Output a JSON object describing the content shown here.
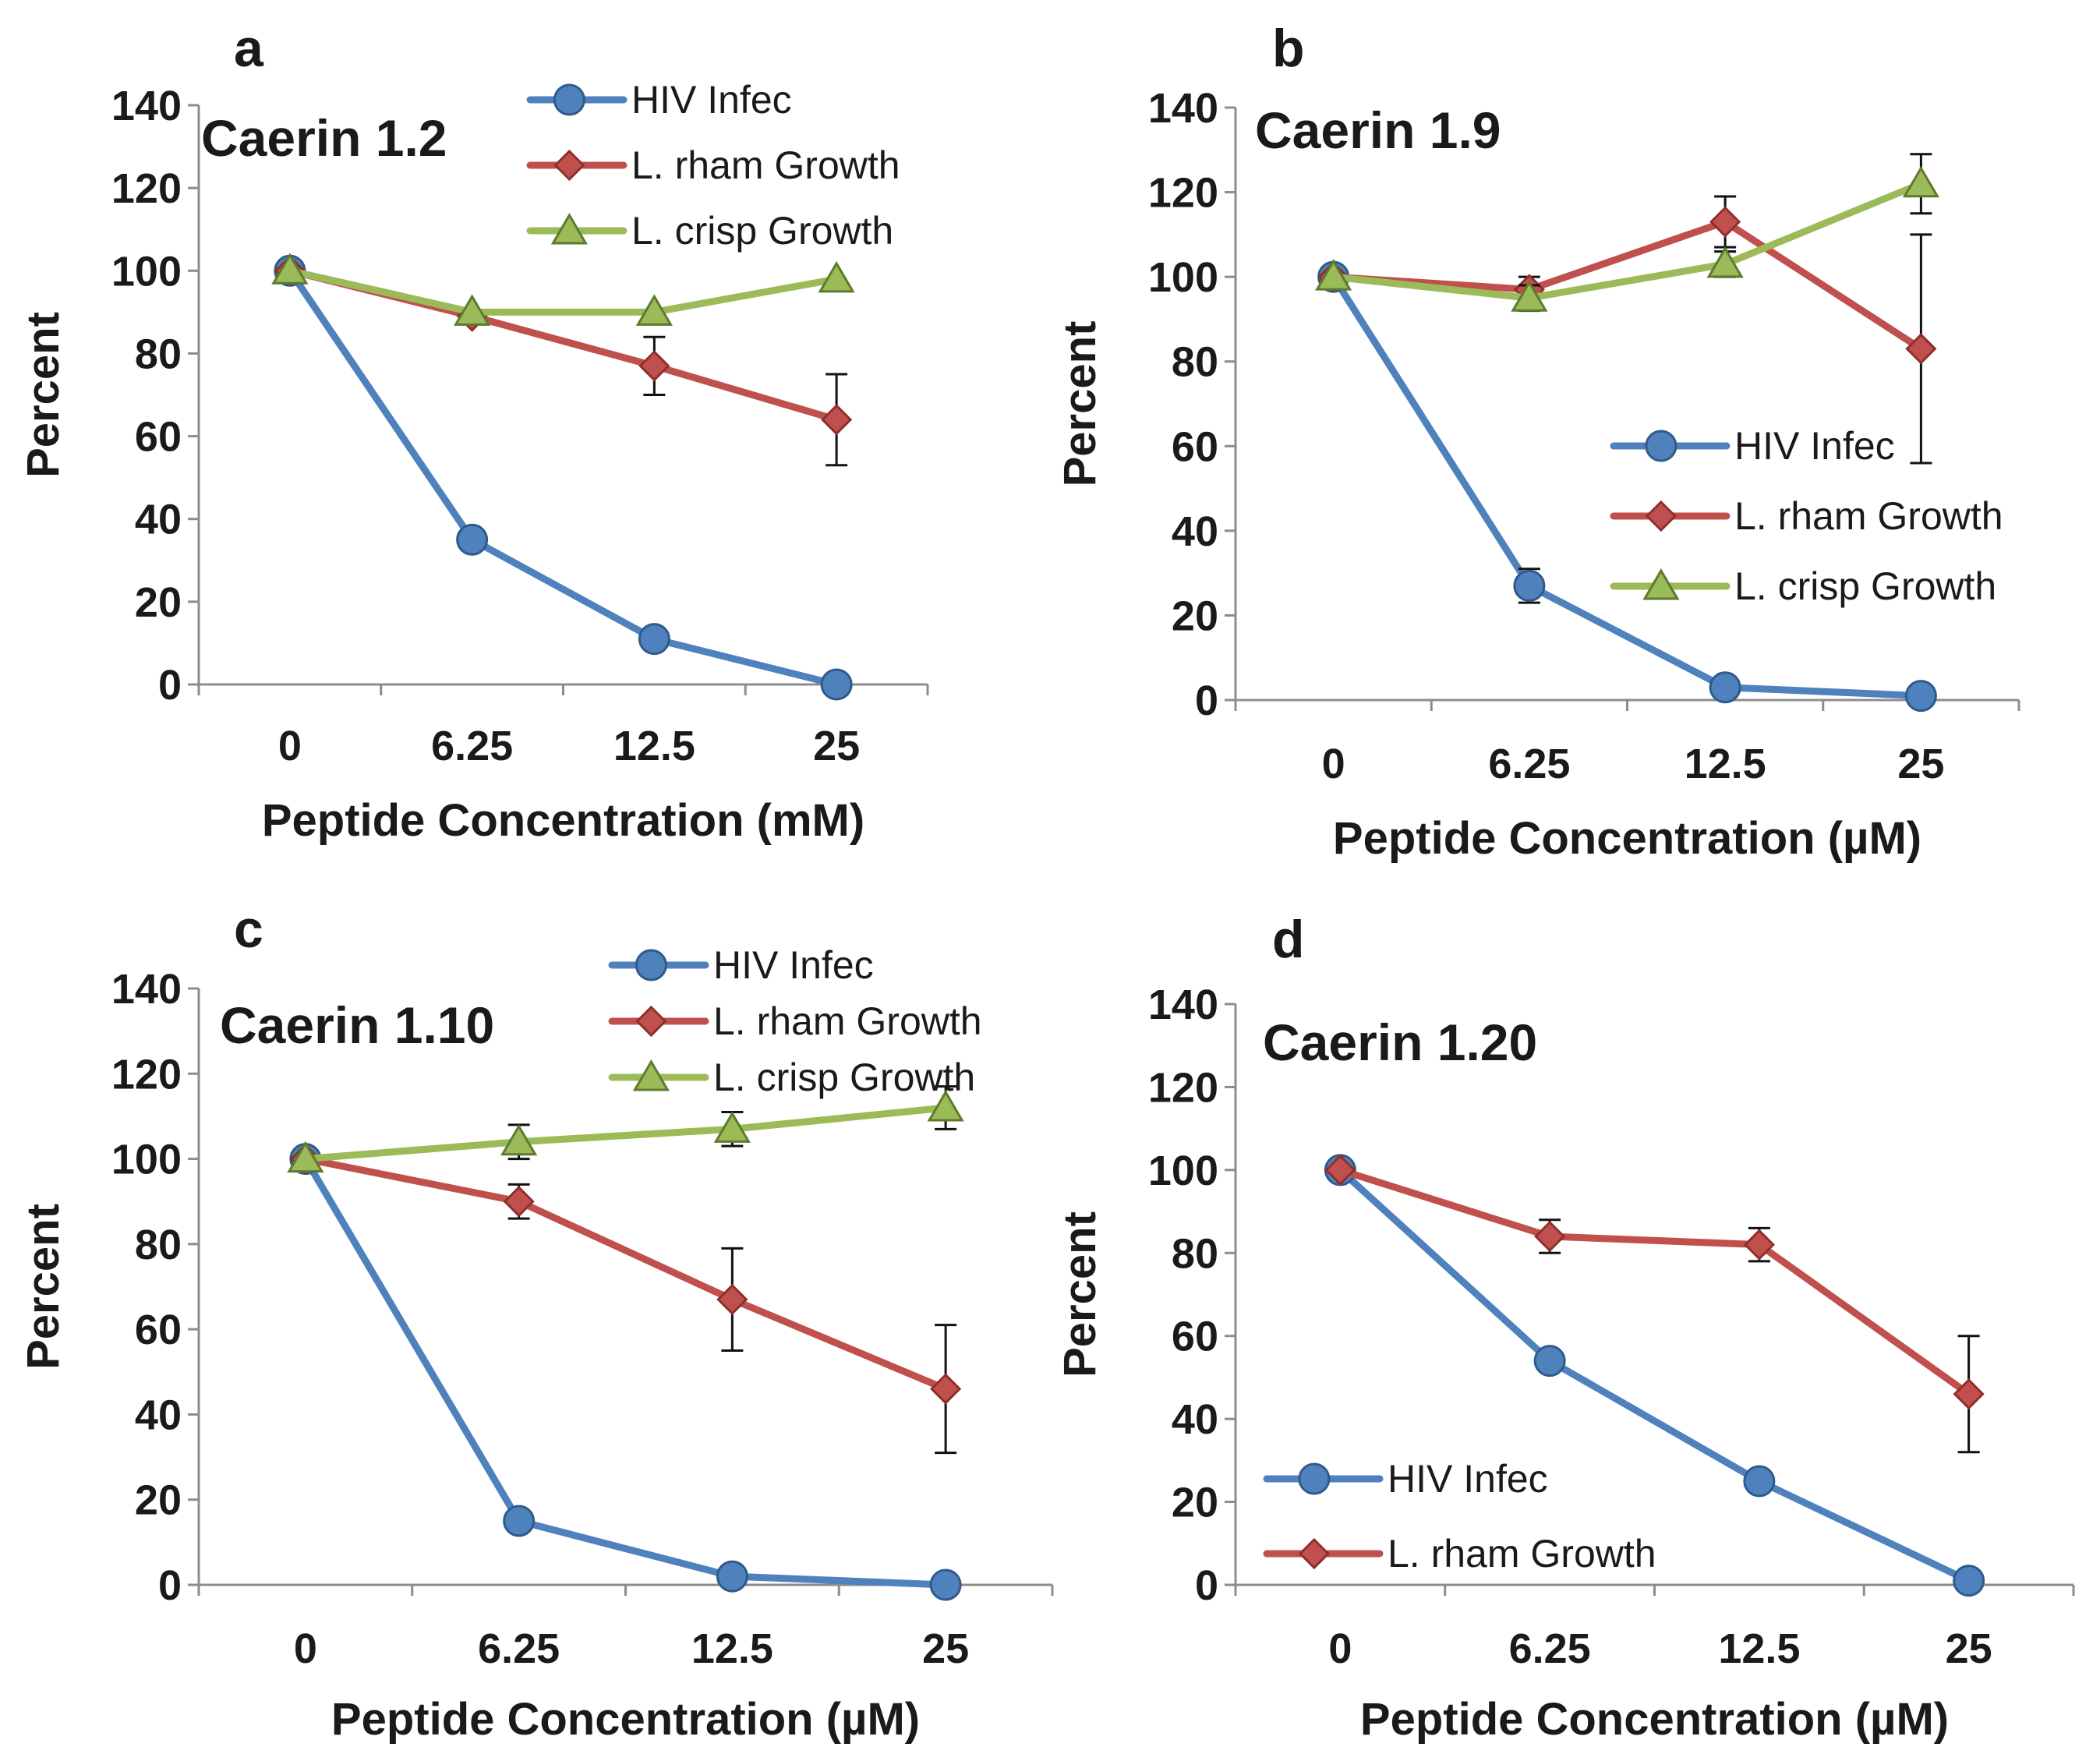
{
  "colors": {
    "hiv": "#4F81BD",
    "hiv_edge": "#2F5A8C",
    "rham": "#C0504D",
    "rham_edge": "#8E2F2C",
    "crisp": "#9BBB59",
    "crisp_edge": "#5E7A2E",
    "axis": "#8c8c8c"
  },
  "chart_data": [
    {
      "type": "line",
      "panel": "a",
      "title": "Caerin 1.2",
      "xlabel": "Peptide Concentration (mM)",
      "ylabel": "Percent",
      "categories": [
        "0",
        "6.25",
        "12.5",
        "25"
      ],
      "ylim": [
        0,
        140
      ],
      "yticks": [
        0,
        20,
        40,
        60,
        80,
        100,
        120,
        140
      ],
      "legend_position": "top-right",
      "series": [
        {
          "name": "HIV Infec",
          "key": "hiv",
          "marker": "circle",
          "values": [
            100,
            35,
            11,
            0
          ],
          "errors": [
            0,
            0,
            0,
            0
          ]
        },
        {
          "name": "L. rham Growth",
          "key": "rham",
          "marker": "diamond",
          "values": [
            100,
            89,
            77,
            64
          ],
          "errors": [
            0,
            0,
            7,
            11
          ]
        },
        {
          "name": "L. crisp Growth",
          "key": "crisp",
          "marker": "triangle",
          "values": [
            100,
            90,
            90,
            98
          ],
          "errors": [
            0,
            0,
            0,
            0
          ]
        }
      ]
    },
    {
      "type": "line",
      "panel": "b",
      "title": "Caerin 1.9",
      "xlabel": "Peptide Concentration (µM)",
      "ylabel": "Percent",
      "categories": [
        "0",
        "6.25",
        "12.5",
        "25"
      ],
      "ylim": [
        0,
        140
      ],
      "yticks": [
        0,
        20,
        40,
        60,
        80,
        100,
        120,
        140
      ],
      "legend_position": "center-right",
      "series": [
        {
          "name": "HIV Infec",
          "key": "hiv",
          "marker": "circle",
          "values": [
            100,
            27,
            3,
            1
          ],
          "errors": [
            0,
            4,
            0,
            0
          ]
        },
        {
          "name": "L. rham Growth",
          "key": "rham",
          "marker": "diamond",
          "values": [
            100,
            97,
            113,
            83
          ],
          "errors": [
            0,
            3,
            6,
            27
          ]
        },
        {
          "name": "L. crisp Growth",
          "key": "crisp",
          "marker": "triangle",
          "values": [
            100,
            95,
            103,
            122
          ],
          "errors": [
            0,
            3,
            3,
            7
          ]
        }
      ]
    },
    {
      "type": "line",
      "panel": "c",
      "title": "Caerin 1.10",
      "xlabel": "Peptide Concentration (µM)",
      "ylabel": "Percent",
      "categories": [
        "0",
        "6.25",
        "12.5",
        "25"
      ],
      "ylim": [
        0,
        140
      ],
      "yticks": [
        0,
        20,
        40,
        60,
        80,
        100,
        120,
        140
      ],
      "legend_position": "top-right",
      "series": [
        {
          "name": "HIV Infec",
          "key": "hiv",
          "marker": "circle",
          "values": [
            100,
            15,
            2,
            0
          ],
          "errors": [
            0,
            0,
            0,
            0
          ]
        },
        {
          "name": "L. rham Growth",
          "key": "rham",
          "marker": "diamond",
          "values": [
            100,
            90,
            67,
            46
          ],
          "errors": [
            0,
            4,
            12,
            15
          ]
        },
        {
          "name": "L. crisp Growth",
          "key": "crisp",
          "marker": "triangle",
          "values": [
            100,
            104,
            107,
            112
          ],
          "errors": [
            0,
            4,
            4,
            5
          ]
        }
      ]
    },
    {
      "type": "line",
      "panel": "d",
      "title": "Caerin 1.20",
      "xlabel": "Peptide Concentration (µM)",
      "ylabel": "Percent",
      "categories": [
        "0",
        "6.25",
        "12.5",
        "25"
      ],
      "ylim": [
        0,
        140
      ],
      "yticks": [
        0,
        20,
        40,
        60,
        80,
        100,
        120,
        140
      ],
      "legend_position": "bottom-left",
      "series": [
        {
          "name": "HIV Infec",
          "key": "hiv",
          "marker": "circle",
          "values": [
            100,
            54,
            25,
            1
          ],
          "errors": [
            0,
            0,
            0,
            0
          ]
        },
        {
          "name": "L. rham Growth",
          "key": "rham",
          "marker": "diamond",
          "values": [
            100,
            84,
            82,
            46
          ],
          "errors": [
            0,
            4,
            4,
            14
          ]
        }
      ]
    }
  ]
}
